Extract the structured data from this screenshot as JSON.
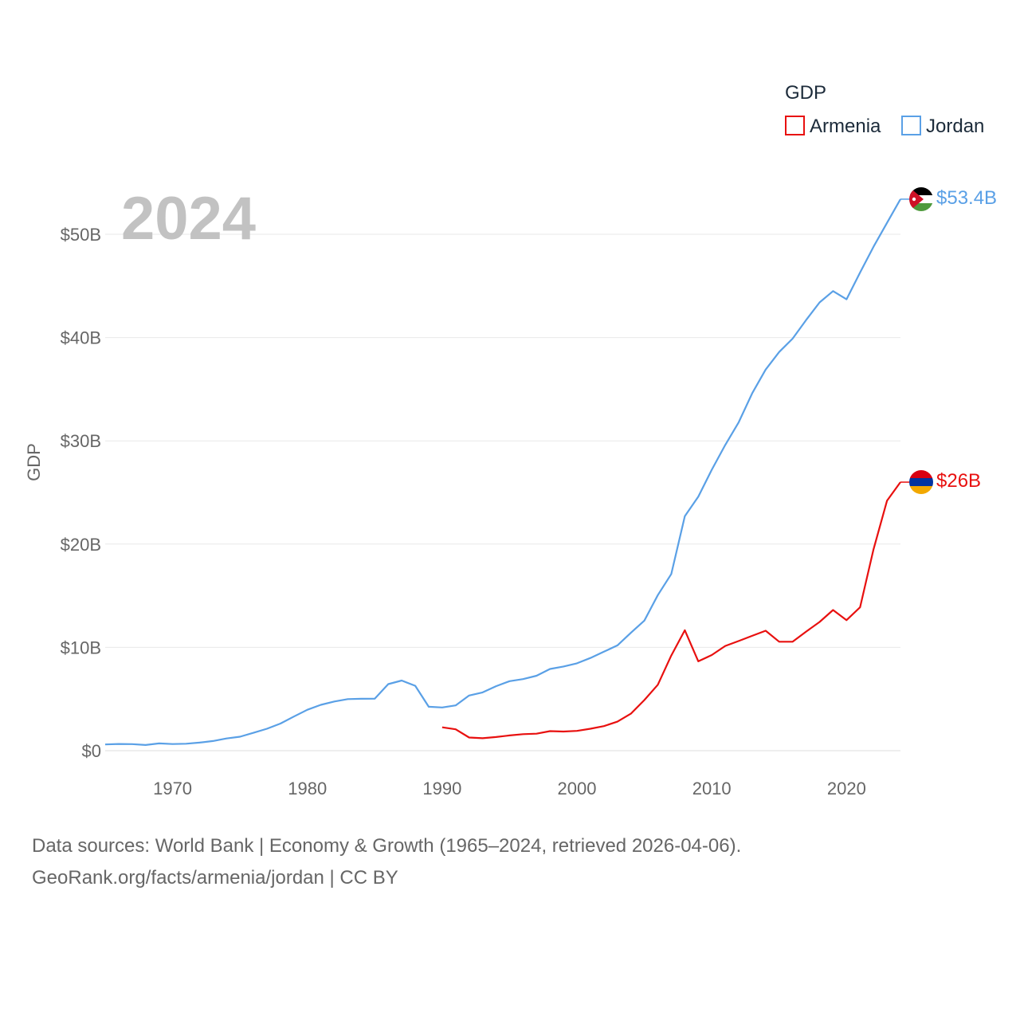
{
  "chart_data": {
    "type": "line",
    "title": "",
    "year_label": "2024",
    "xlabel": "",
    "ylabel": "GDP",
    "xlim": [
      1965,
      2024
    ],
    "ylim": [
      0,
      55
    ],
    "x_ticks": [
      1970,
      1980,
      1990,
      2000,
      2010,
      2020
    ],
    "y_ticks": [
      0,
      10,
      20,
      30,
      40,
      50
    ],
    "y_tick_labels": [
      "$0",
      "$10B",
      "$20B",
      "$30B",
      "$40B",
      "$50B"
    ],
    "legend": {
      "title": "GDP",
      "position": "top-right",
      "entries": [
        "Armenia",
        "Jordan"
      ]
    },
    "series": [
      {
        "name": "Jordan",
        "color": "#5aa0e6",
        "end_label": "$53.4B",
        "flag": "jordan-flag",
        "points": [
          [
            1965,
            0.6
          ],
          [
            1966,
            0.65
          ],
          [
            1967,
            0.63
          ],
          [
            1968,
            0.55
          ],
          [
            1969,
            0.7
          ],
          [
            1970,
            0.64
          ],
          [
            1971,
            0.67
          ],
          [
            1972,
            0.78
          ],
          [
            1973,
            0.93
          ],
          [
            1974,
            1.18
          ],
          [
            1975,
            1.35
          ],
          [
            1976,
            1.73
          ],
          [
            1977,
            2.12
          ],
          [
            1978,
            2.62
          ],
          [
            1979,
            3.3
          ],
          [
            1980,
            3.96
          ],
          [
            1981,
            4.44
          ],
          [
            1982,
            4.76
          ],
          [
            1983,
            4.99
          ],
          [
            1984,
            5.02
          ],
          [
            1985,
            5.03
          ],
          [
            1986,
            6.44
          ],
          [
            1987,
            6.79
          ],
          [
            1988,
            6.28
          ],
          [
            1989,
            4.25
          ],
          [
            1990,
            4.18
          ],
          [
            1991,
            4.38
          ],
          [
            1992,
            5.34
          ],
          [
            1993,
            5.64
          ],
          [
            1994,
            6.24
          ],
          [
            1995,
            6.73
          ],
          [
            1996,
            6.93
          ],
          [
            1997,
            7.25
          ],
          [
            1998,
            7.91
          ],
          [
            1999,
            8.15
          ],
          [
            2000,
            8.46
          ],
          [
            2001,
            8.97
          ],
          [
            2002,
            9.58
          ],
          [
            2003,
            10.19
          ],
          [
            2004,
            11.41
          ],
          [
            2005,
            12.59
          ],
          [
            2006,
            15.06
          ],
          [
            2007,
            17.11
          ],
          [
            2008,
            22.7
          ],
          [
            2009,
            24.6
          ],
          [
            2010,
            27.2
          ],
          [
            2011,
            29.6
          ],
          [
            2012,
            31.8
          ],
          [
            2013,
            34.6
          ],
          [
            2014,
            36.9
          ],
          [
            2015,
            38.6
          ],
          [
            2016,
            39.9
          ],
          [
            2017,
            41.7
          ],
          [
            2018,
            43.4
          ],
          [
            2019,
            44.5
          ],
          [
            2020,
            43.7
          ],
          [
            2021,
            46.3
          ],
          [
            2022,
            48.8
          ],
          [
            2023,
            51.1
          ],
          [
            2024,
            53.4
          ]
        ]
      },
      {
        "name": "Armenia",
        "color": "#e8100f",
        "end_label": "$26B",
        "flag": "armenia-flag",
        "points": [
          [
            1990,
            2.26
          ],
          [
            1991,
            2.07
          ],
          [
            1992,
            1.27
          ],
          [
            1993,
            1.2
          ],
          [
            1994,
            1.32
          ],
          [
            1995,
            1.47
          ],
          [
            1996,
            1.6
          ],
          [
            1997,
            1.64
          ],
          [
            1998,
            1.89
          ],
          [
            1999,
            1.85
          ],
          [
            2000,
            1.91
          ],
          [
            2001,
            2.12
          ],
          [
            2002,
            2.38
          ],
          [
            2003,
            2.81
          ],
          [
            2004,
            3.58
          ],
          [
            2005,
            4.9
          ],
          [
            2006,
            6.38
          ],
          [
            2007,
            9.21
          ],
          [
            2008,
            11.66
          ],
          [
            2009,
            8.65
          ],
          [
            2010,
            9.26
          ],
          [
            2011,
            10.14
          ],
          [
            2012,
            10.62
          ],
          [
            2013,
            11.12
          ],
          [
            2014,
            11.61
          ],
          [
            2015,
            10.55
          ],
          [
            2016,
            10.55
          ],
          [
            2017,
            11.53
          ],
          [
            2018,
            12.46
          ],
          [
            2019,
            13.62
          ],
          [
            2020,
            12.64
          ],
          [
            2021,
            13.88
          ],
          [
            2022,
            19.5
          ],
          [
            2023,
            24.2
          ],
          [
            2024,
            26.0
          ]
        ]
      }
    ]
  },
  "footer": {
    "line1": "Data sources: World Bank | Economy & Growth (1965–2024, retrieved 2026-04-06).",
    "line2": "GeoRank.org/facts/armenia/jordan | CC BY"
  }
}
